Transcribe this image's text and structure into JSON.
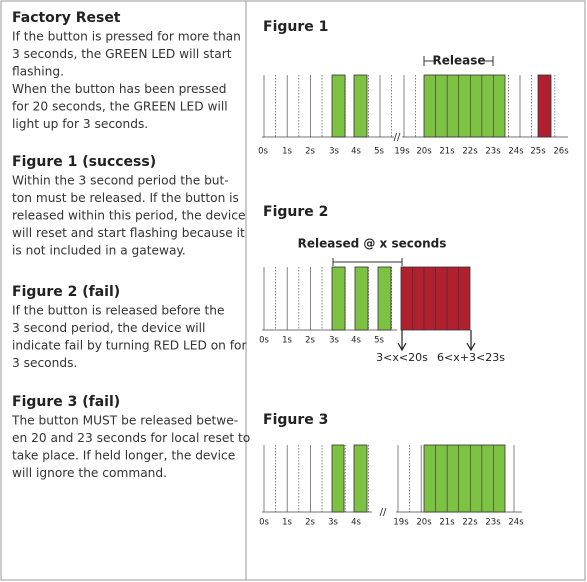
{
  "text_sections": [
    {
      "heading": "Factory Reset",
      "lines": [
        "If the button is pressed for more than",
        "3 seconds, the GREEN LED will start",
        "flashing.",
        "When the button has been pressed",
        "for 20 seconds, the GREEN LED will",
        "light up for 3 seconds."
      ]
    },
    {
      "heading": "Figure 1 (success)",
      "lines": [
        "Within the 3 second period the but-",
        "ton must be released. If the button is",
        "released within this period, the device",
        "will reset and start flashing because it",
        "is not included in a gateway."
      ]
    },
    {
      "heading": "Figure 2 (fail)",
      "lines": [
        "If the button is released before the",
        "3 second period, the device will",
        "indicate fail by turning RED LED on for",
        "3 seconds."
      ]
    },
    {
      "heading": "Figure 3 (fail)",
      "lines": [
        "The button MUST be released betwe-",
        "en 20 and 23 seconds for local reset to",
        "take place. If held longer, the device",
        "will ignore the command."
      ]
    }
  ],
  "figures": [
    {
      "title": "Figure 1",
      "annotation": "Release",
      "time_labels": [
        "0s",
        "1s",
        "2s",
        "3s",
        "4s",
        "5s",
        "19s",
        "20s",
        "21s",
        "22s",
        "23s",
        "24s",
        "25s",
        "26s"
      ]
    },
    {
      "title": "Figure 2",
      "annotation": "Released @ x seconds",
      "time_labels": [
        "0s",
        "1s",
        "2s",
        "3s",
        "4s",
        "5s"
      ],
      "range_labels": [
        "3<x<20s",
        "6<x+3<23s"
      ]
    },
    {
      "title": "Figure 3",
      "time_labels": [
        "0s",
        "1s",
        "2s",
        "3s",
        "4s",
        "19s",
        "20s",
        "21s",
        "22s",
        "23s",
        "24s"
      ]
    }
  ]
}
